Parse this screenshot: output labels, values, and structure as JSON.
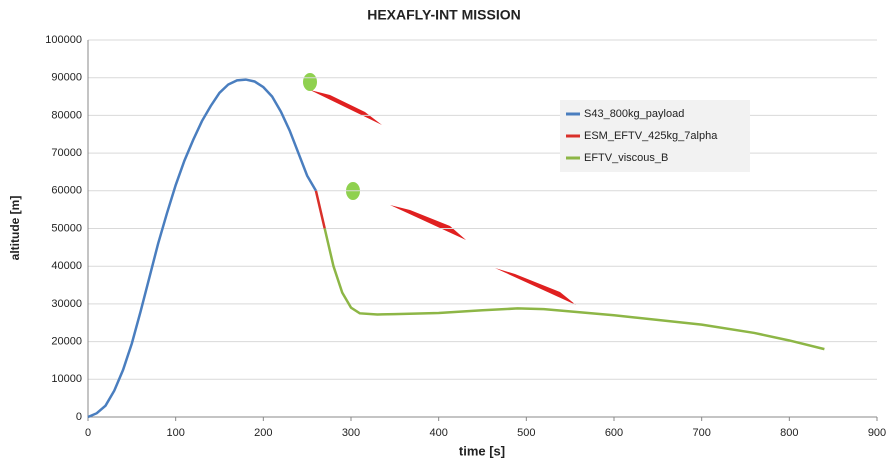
{
  "chart_data": {
    "type": "line",
    "title": "HEXAFLY-INT MISSION",
    "x_label": "time [s]",
    "y_label": "altitude [m]",
    "xlim": [
      0,
      900
    ],
    "xticks": [
      0,
      100,
      200,
      300,
      400,
      500,
      600,
      700,
      800,
      900
    ],
    "ylim": [
      0,
      100000
    ],
    "yticks": [
      0,
      10000,
      20000,
      30000,
      40000,
      50000,
      60000,
      70000,
      80000,
      90000,
      100000
    ],
    "grid": true,
    "legend": "upper right",
    "series": [
      {
        "name": "S43_800kg_payload",
        "color": "#4a7ebf",
        "x": [
          0,
          10,
          20,
          30,
          40,
          50,
          60,
          70,
          80,
          90,
          100,
          110,
          120,
          130,
          140,
          150,
          160,
          170,
          180,
          190,
          200,
          210,
          220,
          230,
          240,
          250,
          260
        ],
        "values": [
          0,
          1000,
          3000,
          7000,
          12500,
          19500,
          28000,
          37000,
          46000,
          54000,
          61500,
          68000,
          73500,
          78500,
          82500,
          86000,
          88200,
          89300,
          89500,
          89000,
          87500,
          85000,
          81000,
          76000,
          70000,
          64000,
          60000
        ]
      },
      {
        "name": "ESM_EFTV_425kg_7alpha",
        "color": "#d9302a",
        "x": [
          260,
          270
        ],
        "values": [
          60000,
          50000
        ]
      },
      {
        "name": "EFTV_viscous_B",
        "color": "#8db646",
        "x": [
          270,
          280,
          290,
          300,
          310,
          330,
          350,
          400,
          450,
          490,
          520,
          600,
          700,
          760,
          800,
          840
        ],
        "values": [
          50000,
          40000,
          33000,
          29000,
          27500,
          27200,
          27300,
          27600,
          28300,
          28800,
          28600,
          27000,
          24500,
          22300,
          20300,
          18000
        ]
      }
    ]
  }
}
